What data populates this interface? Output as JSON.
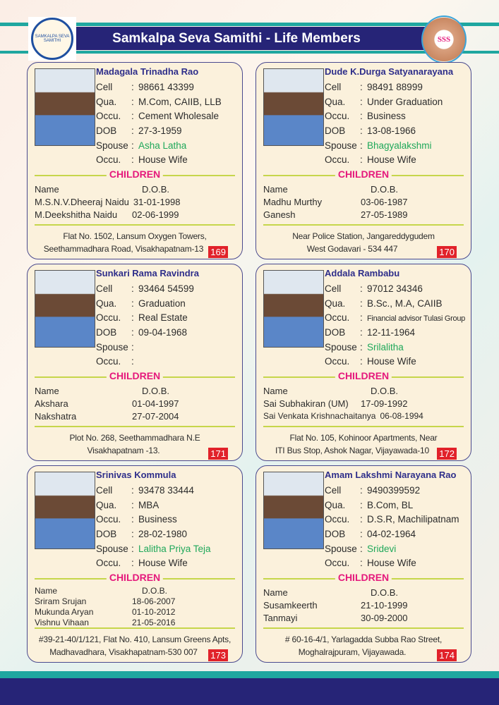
{
  "header": {
    "title": "Samkalpa Seva Samithi - Life Members",
    "left_logo_text": "SAMKALPA SEVA SAMITHI",
    "right_logo_text": "SSS",
    "accent": "#262477",
    "teal": "#1fa7a0"
  },
  "labels": {
    "cell": "Cell",
    "qua": "Qua.",
    "occu": "Occu.",
    "dob": "DOB",
    "spouse": "Spouse",
    "spouse_occu": "Occu.",
    "sep": ":",
    "children": "CHILDREN",
    "name_col": "Name",
    "dob_col": "D.O.B."
  },
  "members": [
    {
      "name": "Madagala Trinadha Rao",
      "cell": "98661 43399",
      "qua": "M.Com, CAIIB, LLB",
      "occu": "Cement Wholesale",
      "dob": "27-3-1959",
      "spouse": "Asha Latha",
      "spouse_occu": "House Wife",
      "children": [
        {
          "name": "M.S.N.V.Dheeraj Naidu",
          "dob": "31-01-1998"
        },
        {
          "name": "M.Deekshitha Naidu",
          "dob": "02-06-1999"
        }
      ],
      "address": [
        "Flat No. 1502, Lansum Oxygen Towers,",
        "Seethammadhara Road, Visakhapatnam-13"
      ],
      "number": "169"
    },
    {
      "name": "Dude K.Durga Satyanarayana",
      "cell": "98491 88999",
      "qua": "Under Graduation",
      "occu": "Business",
      "dob": "13-08-1966",
      "spouse": "Bhagyalakshmi",
      "spouse_occu": "House Wife",
      "children": [
        {
          "name": "Madhu Murthy",
          "dob": "03-06-1987"
        },
        {
          "name": "Ganesh",
          "dob": "27-05-1989"
        }
      ],
      "address": [
        "Near Police Station, Jangareddygudem",
        "West Godavari - 534 447"
      ],
      "number": "170"
    },
    {
      "name": "Sunkari Rama Ravindra",
      "cell": "93464 54599",
      "qua": "Graduation",
      "occu": "Real Estate",
      "dob": "09-04-1968",
      "spouse": "",
      "spouse_occu": "",
      "children": [
        {
          "name": "Akshara",
          "dob": "01-04-1997"
        },
        {
          "name": "Nakshatra",
          "dob": "27-07-2004"
        }
      ],
      "address": [
        "Plot No. 268, Seethammadhara N.E",
        "Visakhapatnam -13."
      ],
      "number": "171"
    },
    {
      "name": "Addala Rambabu",
      "cell": "97012 34346",
      "qua": "B.Sc., M.A, CAIIB",
      "occu": "Financial advisor Tulasi Group",
      "dob": "12-11-1964",
      "spouse": "Srilalitha",
      "spouse_occu": "House Wife",
      "children": [
        {
          "name": "Sai Subhakiran (UM)",
          "dob": "17-09-1992"
        },
        {
          "name": "Sai Venkata Krishnachaitanya",
          "dob": "06-08-1994"
        }
      ],
      "address": [
        "Flat No. 105, Kohinoor Apartments, Near",
        "ITI Bus Stop, Ashok Nagar, Vijayawada-10"
      ],
      "number": "172"
    },
    {
      "name": "Srinivas Kommula",
      "cell": "93478 33444",
      "qua": "MBA",
      "occu": "Business",
      "dob": "28-02-1980",
      "spouse": "Lalitha Priya Teja",
      "spouse_occu": "House Wife",
      "children": [
        {
          "name": "Sriram Srujan",
          "dob": "18-06-2007"
        },
        {
          "name": "Mukunda Aryan",
          "dob": "01-10-2012"
        },
        {
          "name": "Vishnu Vihaan",
          "dob": "21-05-2016"
        }
      ],
      "address": [
        "#39-21-40/1/121, Flat No. 410, Lansum Greens Apts,",
        "Madhavadhara,  Visakhapatnam-530 007"
      ],
      "number": "173"
    },
    {
      "name": "Amam Lakshmi Narayana Rao",
      "cell": "9490399592",
      "qua": "B.Com, BL",
      "occu": "D.S.R, Machilipatnam",
      "dob": "04-02-1964",
      "spouse": "Sridevi",
      "spouse_occu": "House Wife",
      "children": [
        {
          "name": "Susamkeerth",
          "dob": "21-10-1999"
        },
        {
          "name": "Tanmayi",
          "dob": "30-09-2000"
        }
      ],
      "address": [
        "# 60-16-4/1, Yarlagadda Subba Rao Street,",
        "Moghalrajpuram, Vijayawada."
      ],
      "number": "174"
    }
  ]
}
